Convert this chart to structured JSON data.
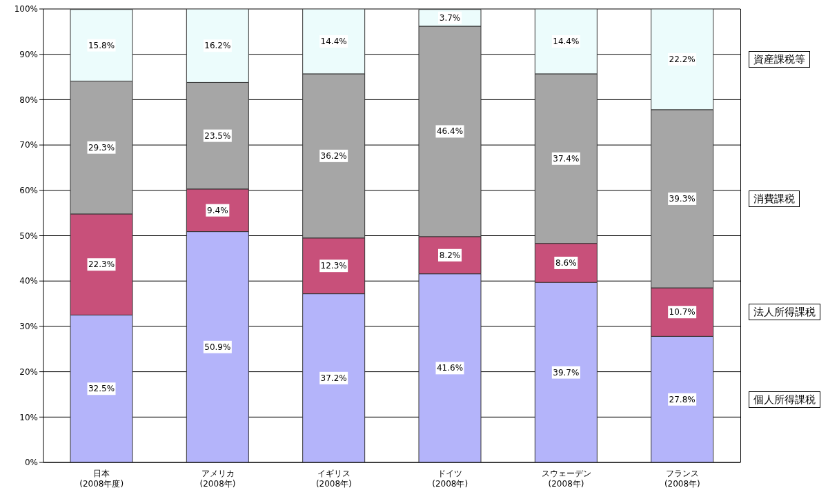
{
  "chart_data": {
    "type": "bar",
    "stacked": true,
    "categories": [
      "日本\n(2008年度)",
      "アメリカ\n(2008年)",
      "イギリス\n(2008年)",
      "ドイツ\n(2008年)",
      "スウェーデン\n(2008年)",
      "フランス\n(2008年)"
    ],
    "series": [
      {
        "name": "個人所得課税",
        "color": "#b4b4fa",
        "values": [
          32.5,
          50.9,
          37.2,
          41.6,
          39.7,
          27.8
        ],
        "value_labels": [
          "32.5%",
          "50.9%",
          "37.2%",
          "41.6%",
          "39.7%",
          "27.8%"
        ]
      },
      {
        "name": "法人所得課税",
        "color": "#c8507a",
        "values": [
          22.3,
          9.4,
          12.3,
          8.2,
          8.6,
          10.7
        ],
        "value_labels": [
          "22.3%",
          "9.4%",
          "12.3%",
          "8.2%",
          "8.6%",
          "10.7%"
        ]
      },
      {
        "name": "消費課税",
        "color": "#a6a6a6",
        "values": [
          29.3,
          23.5,
          36.2,
          46.4,
          37.4,
          39.3
        ],
        "value_labels": [
          "29.3%",
          "23.5%",
          "36.2%",
          "46.4%",
          "37.4%",
          "39.3%"
        ]
      },
      {
        "name": "資産課税等",
        "color": "#ecfcfc",
        "values": [
          15.8,
          16.2,
          14.4,
          3.7,
          14.4,
          22.2
        ],
        "value_labels": [
          "15.8%",
          "16.2%",
          "14.4%",
          "3.7%",
          "14.4%",
          "22.2%"
        ]
      }
    ],
    "ylim": [
      0,
      100
    ],
    "yticks": [
      {
        "value": 0,
        "label": "0%"
      },
      {
        "value": 10,
        "label": "10%"
      },
      {
        "value": 20,
        "label": "20%"
      },
      {
        "value": 30,
        "label": "30%"
      },
      {
        "value": 40,
        "label": "40%"
      },
      {
        "value": 50,
        "label": "50%"
      },
      {
        "value": 60,
        "label": "60%"
      },
      {
        "value": 70,
        "label": "70%"
      },
      {
        "value": 80,
        "label": "80%"
      },
      {
        "value": 90,
        "label": "90%"
      },
      {
        "value": 100,
        "label": "100%"
      }
    ],
    "grid": "y",
    "legend": "right"
  }
}
